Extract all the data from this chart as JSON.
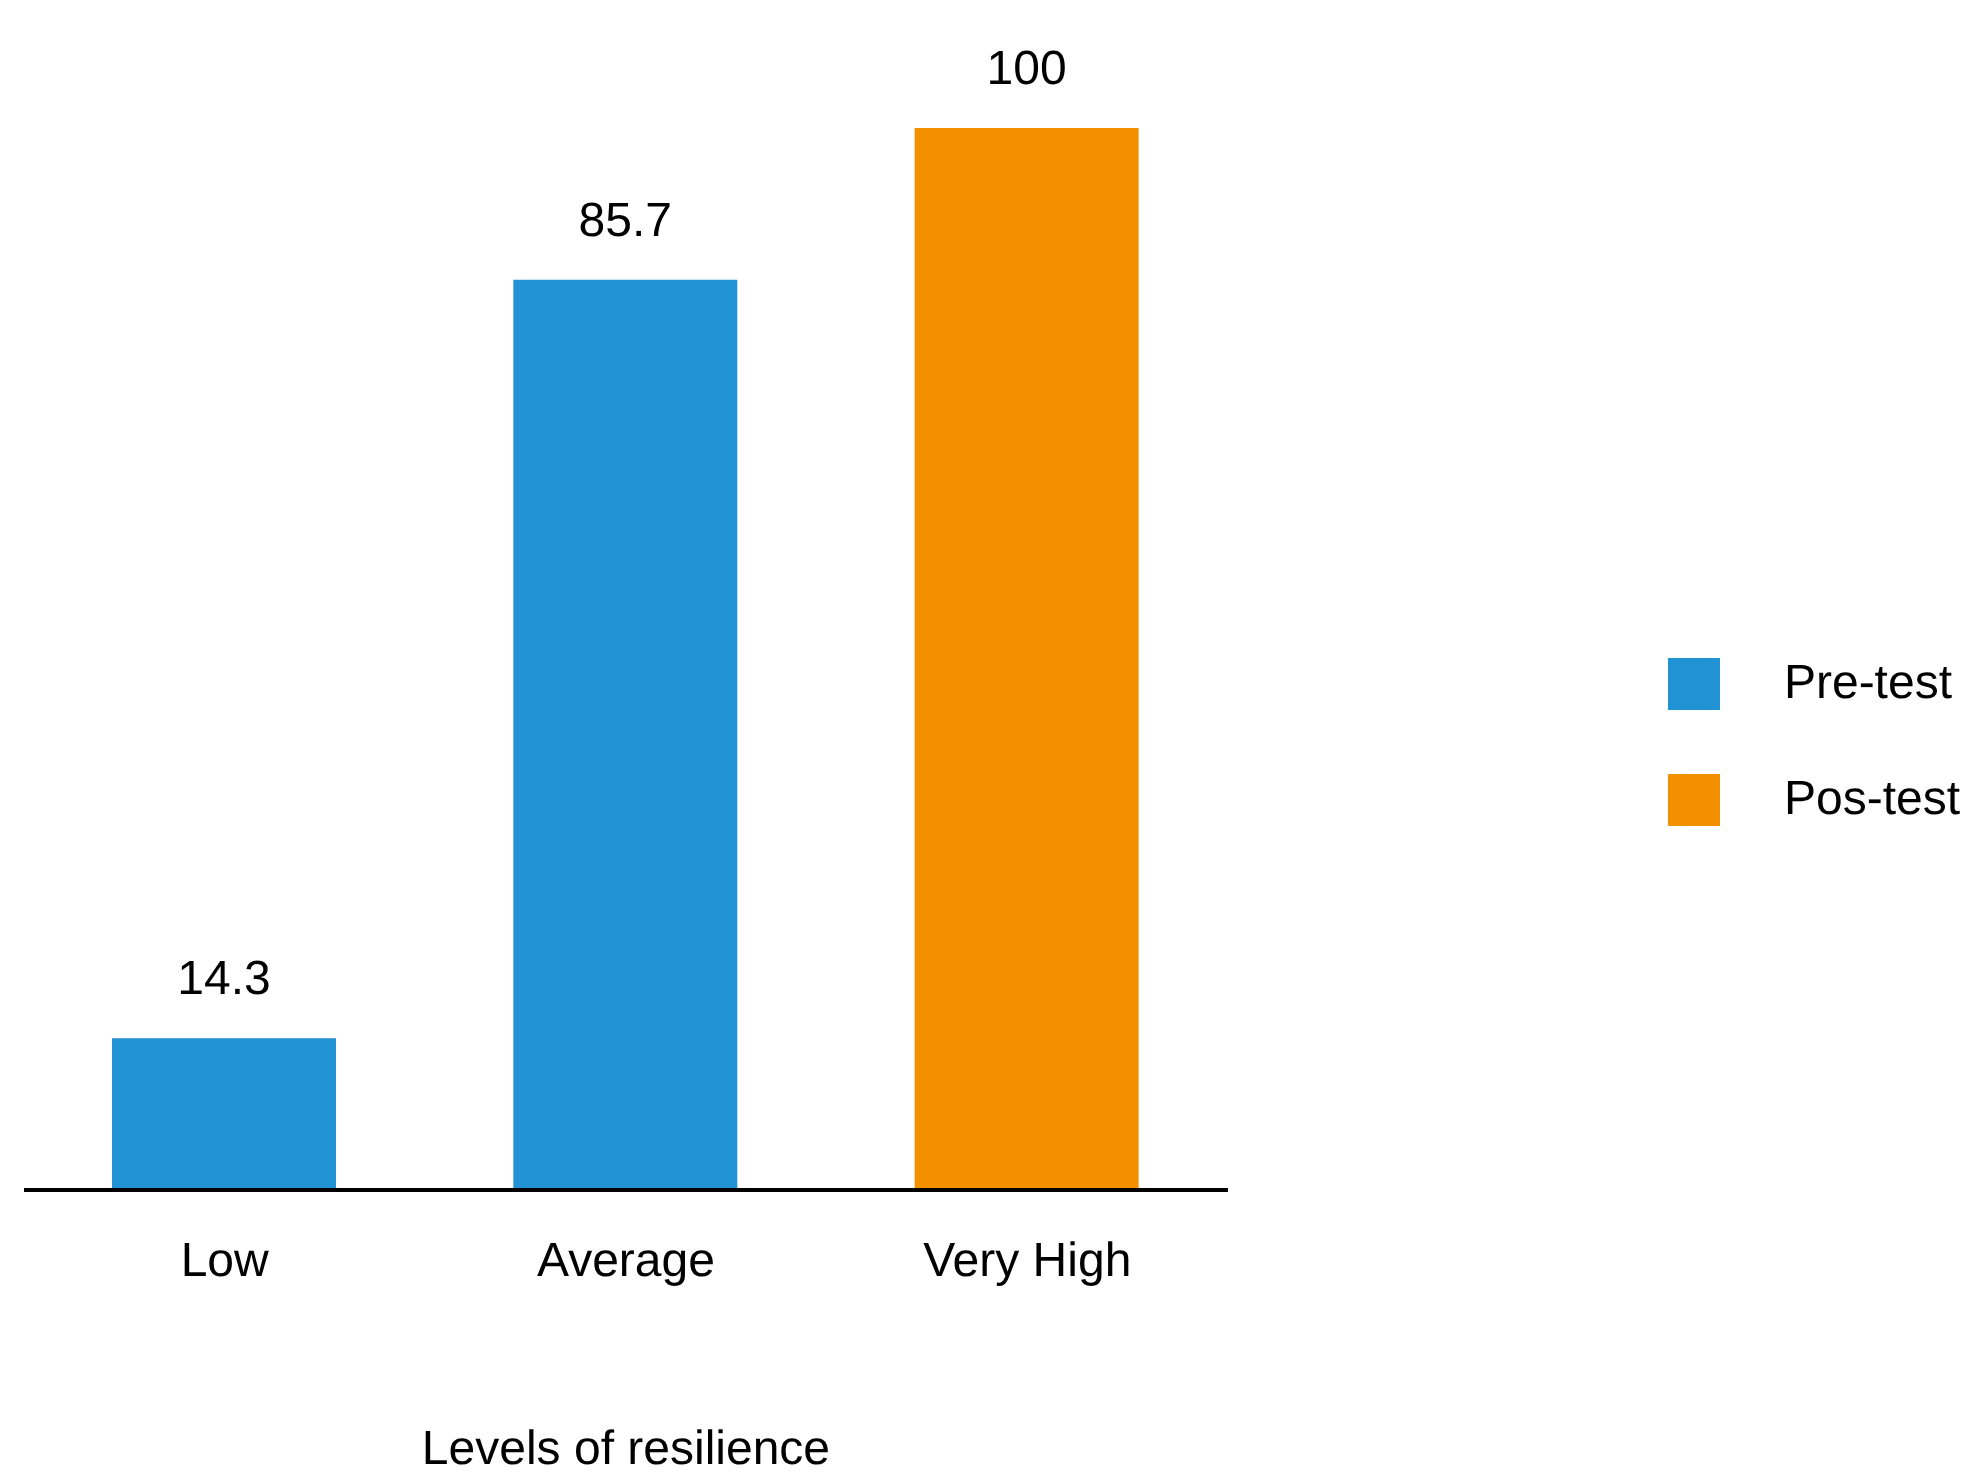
{
  "chart_data": {
    "type": "bar",
    "xlabel": "Levels of resilience",
    "categories": [
      "Low",
      "Average",
      "Very High"
    ],
    "series": [
      {
        "name": "Pre-test",
        "color": "#2192d3",
        "values": [
          14.3,
          85.7,
          null
        ]
      },
      {
        "name": "Pos-test",
        "color": "#f39000",
        "values": [
          null,
          null,
          100
        ]
      }
    ],
    "stacked": true,
    "data_labels": true,
    "legend": "right",
    "grid": false
  }
}
